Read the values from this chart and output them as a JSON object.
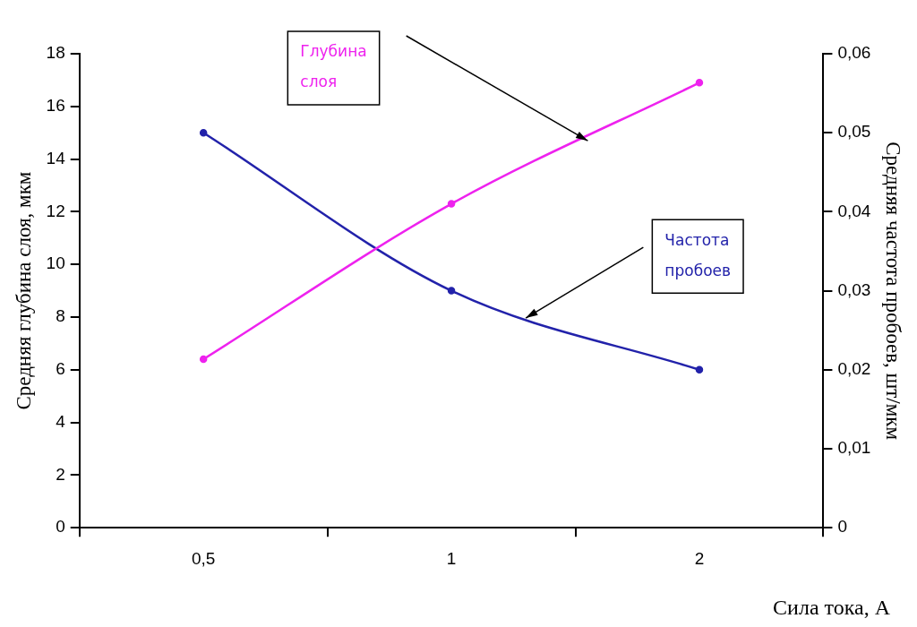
{
  "chart_data": {
    "type": "line",
    "xlabel": "Сила тока, А",
    "ylabel": "Средняя глубина слоя, мкм",
    "y2label": "Средняя частота пробоев, шт/мкм",
    "categories": [
      "0,5",
      "1",
      "2"
    ],
    "series": [
      {
        "name": "Глубина слоя",
        "color": "#ee22ee",
        "values": [
          6.4,
          12.3,
          16.9
        ]
      },
      {
        "name": "Частота пробоев",
        "color": "#2222aa",
        "values": [
          0.05,
          0.03,
          0.02
        ],
        "axis": "y2"
      }
    ],
    "ylim": [
      0,
      18
    ],
    "yticks": [
      0,
      2,
      4,
      6,
      8,
      10,
      12,
      14,
      16,
      18
    ],
    "y2lim": [
      0,
      0.06
    ],
    "y2ticks": [
      {
        "value": 0,
        "label": "0"
      },
      {
        "value": 0.01,
        "label": "0,01"
      },
      {
        "value": 0.02,
        "label": "0,02"
      },
      {
        "value": 0.03,
        "label": "0,03"
      },
      {
        "value": 0.04,
        "label": "0,04"
      },
      {
        "value": 0.05,
        "label": "0,05"
      },
      {
        "value": 0.06,
        "label": "0,06"
      }
    ],
    "grid": false,
    "legend": false,
    "marker": "circle",
    "line_style": "solid"
  }
}
